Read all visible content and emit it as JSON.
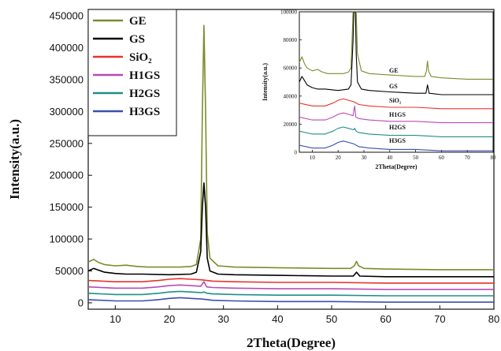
{
  "chart_data": [
    {
      "type": "line",
      "title": "",
      "xlabel": "2Theta(Degree)",
      "ylabel": "Intensity(a.u.)",
      "xlim": [
        5,
        80
      ],
      "ylim": [
        -10000,
        460000
      ],
      "xticks": [
        "10",
        "20",
        "30",
        "40",
        "50",
        "60",
        "70",
        "80"
      ],
      "yticks": [
        "0",
        "50000",
        "100000",
        "150000",
        "200000",
        "250000",
        "300000",
        "350000",
        "400000",
        "450000"
      ],
      "legend_position": "top-left",
      "series": [
        {
          "name": "GE",
          "color": "#7f8a2c",
          "x": [
            5,
            6,
            7,
            8,
            10,
            12,
            14,
            16,
            18,
            20,
            22,
            24,
            25,
            25.8,
            26.1,
            26.4,
            26.7,
            27,
            27.5,
            29,
            32,
            40,
            50,
            53.5,
            54.2,
            54.6,
            55,
            56,
            60,
            70,
            80
          ],
          "y": [
            64000,
            68000,
            63000,
            60000,
            58000,
            59000,
            57000,
            56000,
            56000,
            56000,
            56000,
            57000,
            60000,
            100000,
            300000,
            435000,
            300000,
            110000,
            70000,
            58000,
            56000,
            55000,
            54000,
            54000,
            58000,
            65000,
            58000,
            54000,
            53000,
            52000,
            52000
          ]
        },
        {
          "name": "GS",
          "color": "#000000",
          "x": [
            5,
            6,
            7,
            8,
            10,
            12,
            15,
            20,
            24,
            25,
            25.8,
            26.1,
            26.4,
            26.7,
            27,
            27.5,
            29,
            32,
            40,
            50,
            54,
            54.6,
            55.2,
            60,
            70,
            80
          ],
          "y": [
            50000,
            54000,
            51000,
            48000,
            46000,
            45000,
            45000,
            44000,
            45000,
            48000,
            80000,
            150000,
            188000,
            150000,
            70000,
            50000,
            45000,
            44000,
            43000,
            42000,
            42000,
            48000,
            42000,
            41000,
            41000,
            41000
          ]
        },
        {
          "name": "SiO₂",
          "color": "#e8322d",
          "x": [
            5,
            10,
            15,
            18,
            20,
            22,
            24,
            26,
            28,
            32,
            40,
            50,
            60,
            70,
            80
          ],
          "y": [
            35000,
            33000,
            33000,
            35000,
            37000,
            38000,
            37000,
            36000,
            34000,
            33000,
            32000,
            32000,
            31000,
            31000,
            31000
          ]
        },
        {
          "name": "H1GS",
          "color": "#b84bb3",
          "x": [
            5,
            10,
            15,
            18,
            20,
            22,
            24,
            25.8,
            26.4,
            26.9,
            28,
            32,
            40,
            50,
            60,
            70,
            80
          ],
          "y": [
            25000,
            23000,
            23000,
            25000,
            27000,
            28000,
            27000,
            26000,
            33000,
            25000,
            24000,
            23000,
            22000,
            22000,
            21000,
            21000,
            21000
          ]
        },
        {
          "name": "H2GS",
          "color": "#1f8f87",
          "x": [
            5,
            10,
            15,
            18,
            20,
            22,
            24,
            26,
            26.4,
            27,
            28,
            32,
            40,
            50,
            60,
            70,
            80
          ],
          "y": [
            15000,
            13000,
            13000,
            15000,
            17000,
            18000,
            17000,
            16000,
            17000,
            15000,
            14000,
            13000,
            12000,
            12000,
            11000,
            11000,
            11000
          ]
        },
        {
          "name": "H3GS",
          "color": "#3b4fb0",
          "x": [
            5,
            10,
            15,
            18,
            20,
            22,
            24,
            26,
            28,
            32,
            40,
            50,
            60,
            70,
            80
          ],
          "y": [
            5000,
            3000,
            3000,
            5000,
            7000,
            8000,
            7000,
            6000,
            4000,
            3000,
            2000,
            2000,
            1000,
            1000,
            1000
          ]
        }
      ]
    },
    {
      "type": "line",
      "title": "",
      "xlabel": "2Theta(Degree)",
      "ylabel": "Intensity(a.u.)",
      "xlim": [
        5,
        80
      ],
      "ylim": [
        0,
        100000
      ],
      "xticks": [
        "10",
        "20",
        "30",
        "40",
        "50",
        "60",
        "70",
        "80"
      ],
      "yticks": [
        "0",
        "20000",
        "40000",
        "60000",
        "80000",
        "100000"
      ],
      "series_labels": [
        "GE",
        "GS",
        "SiO₂",
        "H1GS",
        "H2GS",
        "H3GS"
      ],
      "series_colors": [
        "#7f8a2c",
        "#000000",
        "#e8322d",
        "#b84bb3",
        "#1f8f87",
        "#3b4fb0"
      ]
    }
  ]
}
